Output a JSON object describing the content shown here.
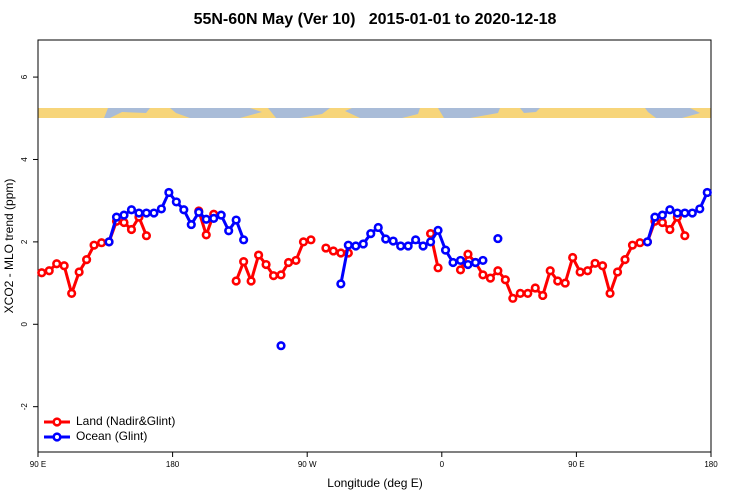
{
  "chart_data": {
    "type": "line",
    "title": "55N-60N May (Ver 10)   2015-01-01 to 2020-12-18",
    "x_label": "Longitude (deg E)",
    "y_label": "XCO2 - MLO trend (ppm)",
    "x": [
      92.5,
      97.5,
      102.5,
      107.5,
      112.5,
      117.5,
      122.5,
      127.5,
      132.5,
      137.5,
      142.5,
      147.5,
      152.5,
      157.5,
      162.5,
      167.5,
      172.5,
      177.5,
      182.5,
      187.5,
      192.5,
      197.5,
      202.5,
      207.5,
      212.5,
      217.5,
      222.5,
      227.5,
      232.5,
      237.5,
      242.5,
      247.5,
      252.5,
      257.5,
      262.5,
      267.5,
      272.5,
      277.5,
      282.5,
      287.5,
      292.5,
      297.5,
      302.5,
      307.5,
      312.5,
      317.5,
      322.5,
      327.5,
      332.5,
      337.5,
      342.5,
      347.5,
      352.5,
      357.5,
      362.5,
      367.5,
      372.5,
      377.5,
      382.5,
      387.5,
      392.5,
      397.5,
      402.5,
      407.5,
      412.5,
      417.5,
      422.5,
      427.5,
      432.5,
      437.5,
      442.5,
      447.5,
      452.5,
      457.5,
      462.5,
      467.5,
      472.5,
      477.5,
      482.5,
      487.5,
      492.5,
      497.5,
      502.5,
      507.5,
      512.5,
      517.5,
      522.5,
      527.5,
      532.5,
      537.5
    ],
    "series": [
      {
        "name": "Land (Nadir&Glint)",
        "color": "#ff0000",
        "values": [
          1.25,
          1.3,
          1.47,
          1.42,
          0.75,
          1.27,
          1.57,
          1.92,
          1.98,
          2.0,
          2.5,
          2.47,
          2.3,
          2.6,
          2.15,
          null,
          null,
          null,
          null,
          null,
          null,
          2.75,
          2.17,
          2.67,
          null,
          null,
          1.05,
          1.52,
          1.05,
          1.68,
          1.45,
          1.18,
          1.2,
          1.5,
          1.55,
          2.0,
          2.05,
          null,
          1.85,
          1.78,
          1.73,
          1.73,
          null,
          null,
          null,
          null,
          null,
          null,
          null,
          null,
          null,
          null,
          2.2,
          1.37,
          null,
          null,
          1.32,
          1.7,
          1.5,
          1.2,
          1.12,
          1.3,
          1.08,
          0.63,
          0.75,
          0.75,
          0.88,
          0.7,
          1.3,
          1.05,
          1.0,
          1.62,
          1.27,
          1.3,
          1.48,
          1.42,
          0.75,
          1.27,
          1.57,
          1.92,
          1.98,
          2.0,
          2.5,
          2.47,
          2.3,
          2.6,
          2.15,
          null,
          null,
          null
        ]
      },
      {
        "name": "Ocean (Glint)",
        "color": "#0000ff",
        "values": [
          null,
          null,
          null,
          null,
          null,
          null,
          null,
          null,
          null,
          2.0,
          2.6,
          2.65,
          2.78,
          2.7,
          2.7,
          2.7,
          2.8,
          3.2,
          2.97,
          2.78,
          2.42,
          2.72,
          2.55,
          2.57,
          2.65,
          2.27,
          2.53,
          2.05,
          null,
          null,
          null,
          null,
          -0.52,
          null,
          null,
          null,
          null,
          null,
          null,
          null,
          0.98,
          1.92,
          1.9,
          1.95,
          2.2,
          2.35,
          2.07,
          2.02,
          1.9,
          1.9,
          2.05,
          1.9,
          2.0,
          2.28,
          1.8,
          1.5,
          1.55,
          1.45,
          1.5,
          1.55,
          null,
          2.08,
          null,
          null,
          null,
          null,
          null,
          null,
          null,
          null,
          null,
          null,
          null,
          null,
          null,
          null,
          null,
          null,
          null,
          null,
          null,
          2.0,
          2.6,
          2.65,
          2.78,
          2.7,
          2.7,
          2.7,
          2.8,
          3.2
        ]
      }
    ],
    "xlim": [
      90,
      540
    ],
    "xticks": [
      {
        "value": 90,
        "label": "90 E"
      },
      180,
      {
        "value": 270,
        "label": "90 W"
      },
      {
        "value": 360,
        "label": "0"
      },
      {
        "value": 450,
        "label": "90 E"
      },
      {
        "value": 540,
        "label": "180"
      }
    ],
    "ylim": [
      -3.1,
      6.9
    ],
    "yticks": [
      -2,
      0,
      2,
      4,
      6
    ],
    "grid": false,
    "legend": "bottom-left"
  }
}
